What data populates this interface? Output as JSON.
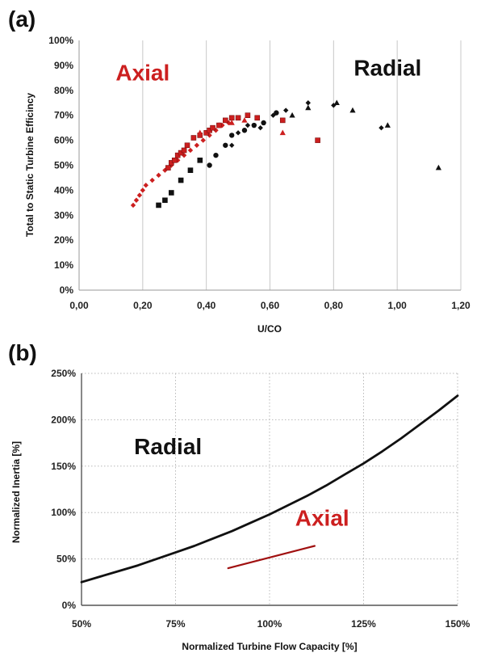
{
  "chart_data": [
    {
      "panel_label": "(a)",
      "type": "scatter",
      "title": "",
      "xlabel": "U/CO",
      "ylabel": "Total to Static Turbine Efficincy",
      "xlim": [
        0,
        1.2
      ],
      "ylim": [
        0,
        100
      ],
      "xticks": [
        "0,00",
        "0,20",
        "0,40",
        "0,60",
        "0,80",
        "1,00",
        "1,20"
      ],
      "yticks": [
        "0%",
        "10%",
        "20%",
        "30%",
        "40%",
        "50%",
        "60%",
        "70%",
        "80%",
        "90%",
        "100%"
      ],
      "grid": "vertical",
      "colors": {
        "axial": "#cc1f1f",
        "radial": "#111111"
      },
      "annotations": [
        {
          "text": "Axial",
          "color": "#cc1f1f",
          "x": 0.2,
          "y": 84
        },
        {
          "text": "Radial",
          "color": "#111111",
          "x": 0.97,
          "y": 86
        }
      ],
      "series": [
        {
          "group": "axial",
          "marker": "diamond",
          "points": [
            [
              0.17,
              34
            ],
            [
              0.18,
              36
            ],
            [
              0.19,
              38
            ],
            [
              0.2,
              40
            ],
            [
              0.21,
              42
            ],
            [
              0.23,
              44
            ],
            [
              0.25,
              46
            ],
            [
              0.27,
              48
            ],
            [
              0.29,
              50
            ],
            [
              0.31,
              52
            ],
            [
              0.33,
              54
            ],
            [
              0.35,
              56
            ],
            [
              0.37,
              58
            ],
            [
              0.39,
              60
            ],
            [
              0.41,
              62
            ],
            [
              0.43,
              64
            ],
            [
              0.45,
              66
            ],
            [
              0.47,
              67
            ]
          ]
        },
        {
          "group": "axial",
          "marker": "square",
          "points": [
            [
              0.28,
              49
            ],
            [
              0.29,
              51
            ],
            [
              0.3,
              52
            ],
            [
              0.31,
              54
            ],
            [
              0.32,
              55
            ],
            [
              0.33,
              56
            ],
            [
              0.34,
              58
            ],
            [
              0.36,
              61
            ],
            [
              0.38,
              62
            ],
            [
              0.4,
              63
            ],
            [
              0.41,
              64
            ],
            [
              0.42,
              65
            ],
            [
              0.44,
              66
            ],
            [
              0.46,
              68
            ],
            [
              0.48,
              69
            ],
            [
              0.5,
              69
            ],
            [
              0.53,
              70
            ],
            [
              0.56,
              69
            ],
            [
              0.64,
              68
            ],
            [
              0.75,
              60
            ]
          ]
        },
        {
          "group": "axial",
          "marker": "triangle",
          "points": [
            [
              0.38,
              63
            ],
            [
              0.44,
              66
            ],
            [
              0.48,
              67
            ],
            [
              0.52,
              68
            ],
            [
              0.64,
              63
            ]
          ]
        },
        {
          "group": "radial",
          "marker": "square",
          "points": [
            [
              0.25,
              34
            ],
            [
              0.27,
              36
            ],
            [
              0.29,
              39
            ],
            [
              0.32,
              44
            ],
            [
              0.35,
              48
            ],
            [
              0.38,
              52
            ]
          ]
        },
        {
          "group": "radial",
          "marker": "circle",
          "points": [
            [
              0.41,
              50
            ],
            [
              0.43,
              54
            ],
            [
              0.46,
              58
            ],
            [
              0.48,
              62
            ],
            [
              0.52,
              64
            ],
            [
              0.55,
              66
            ],
            [
              0.58,
              67
            ],
            [
              0.62,
              71
            ]
          ]
        },
        {
          "group": "radial",
          "marker": "diamond",
          "points": [
            [
              0.48,
              58
            ],
            [
              0.5,
              63
            ],
            [
              0.53,
              66
            ],
            [
              0.57,
              65
            ],
            [
              0.61,
              70
            ],
            [
              0.65,
              72
            ],
            [
              0.72,
              75
            ],
            [
              0.8,
              74
            ],
            [
              0.95,
              65
            ]
          ]
        },
        {
          "group": "radial",
          "marker": "triangle",
          "points": [
            [
              0.67,
              70
            ],
            [
              0.72,
              73
            ],
            [
              0.81,
              75
            ],
            [
              0.86,
              72
            ],
            [
              0.97,
              66
            ],
            [
              1.13,
              49
            ]
          ]
        }
      ]
    },
    {
      "panel_label": "(b)",
      "type": "line",
      "title": "",
      "xlabel": "Normalized Turbine Flow Capacity [%]",
      "ylabel": "Normalized Inertia [%]",
      "xlim": [
        50,
        150
      ],
      "ylim": [
        0,
        250
      ],
      "xticks": [
        "50%",
        "75%",
        "100%",
        "125%",
        "150%"
      ],
      "yticks": [
        "0%",
        "50%",
        "100%",
        "150%",
        "200%",
        "250%"
      ],
      "grid": "dotted",
      "colors": {
        "axial": "#a01010",
        "radial": "#111111"
      },
      "annotations": [
        {
          "text": "Radial",
          "color": "#111111",
          "x": 73,
          "y": 163
        },
        {
          "text": "Axial",
          "color": "#cc1f1f",
          "x": 114,
          "y": 86
        }
      ],
      "series": [
        {
          "group": "radial",
          "x": [
            50,
            55,
            60,
            65,
            70,
            75,
            80,
            85,
            90,
            95,
            100,
            105,
            110,
            115,
            120,
            125,
            130,
            135,
            140,
            145,
            150
          ],
          "values": [
            25,
            31,
            37,
            43,
            50,
            57,
            64,
            72,
            80,
            89,
            98,
            108,
            118,
            129,
            141,
            153,
            166,
            180,
            195,
            210,
            226
          ]
        },
        {
          "group": "axial",
          "x": [
            89,
            112
          ],
          "values": [
            40,
            64
          ]
        }
      ]
    }
  ]
}
